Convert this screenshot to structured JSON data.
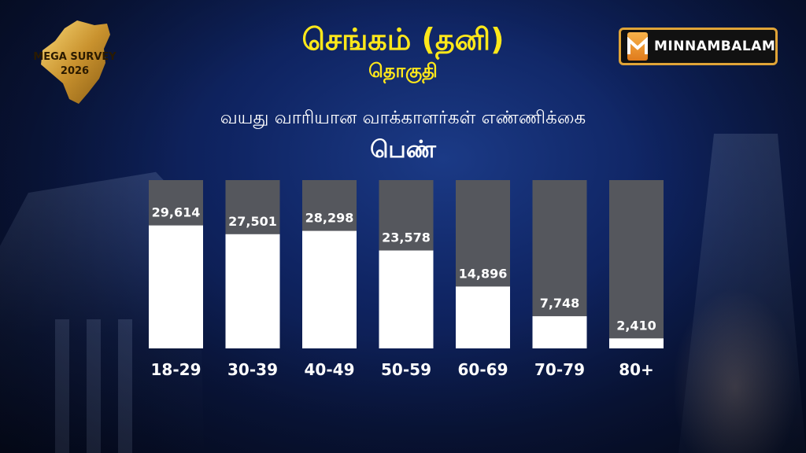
{
  "header": {
    "title": "செங்கம் (தனி)",
    "subtitle": "தொகுதி"
  },
  "logos": {
    "survey_text_top": "MEGA SURVEY",
    "survey_text_year": "2026",
    "brand_name": "MINNAMBALAM"
  },
  "chart_heading": "வயது வாரியான வாக்காளர்கள் எண்ணிக்கை",
  "chart_category_label": "பெண்",
  "colors": {
    "title": "#ffe81a",
    "bar_fill": "#ffffff",
    "bar_track": "#55575d",
    "brand_border": "#e0a437"
  },
  "chart_data": {
    "type": "bar",
    "categories": [
      "18-29",
      "30-39",
      "40-49",
      "50-59",
      "60-69",
      "70-79",
      "80+"
    ],
    "values": [
      29614,
      27501,
      28298,
      23578,
      14896,
      7748,
      2410
    ],
    "value_labels": [
      "29,614",
      "27,501",
      "28,298",
      "23,578",
      "14,896",
      "7,748",
      "2,410"
    ],
    "title": "வயது வாரியான வாக்காளர்கள் எண்ணிக்கை",
    "xlabel": "",
    "ylabel": "",
    "ylim": [
      0,
      40000
    ],
    "grid": false,
    "legend": "none"
  }
}
